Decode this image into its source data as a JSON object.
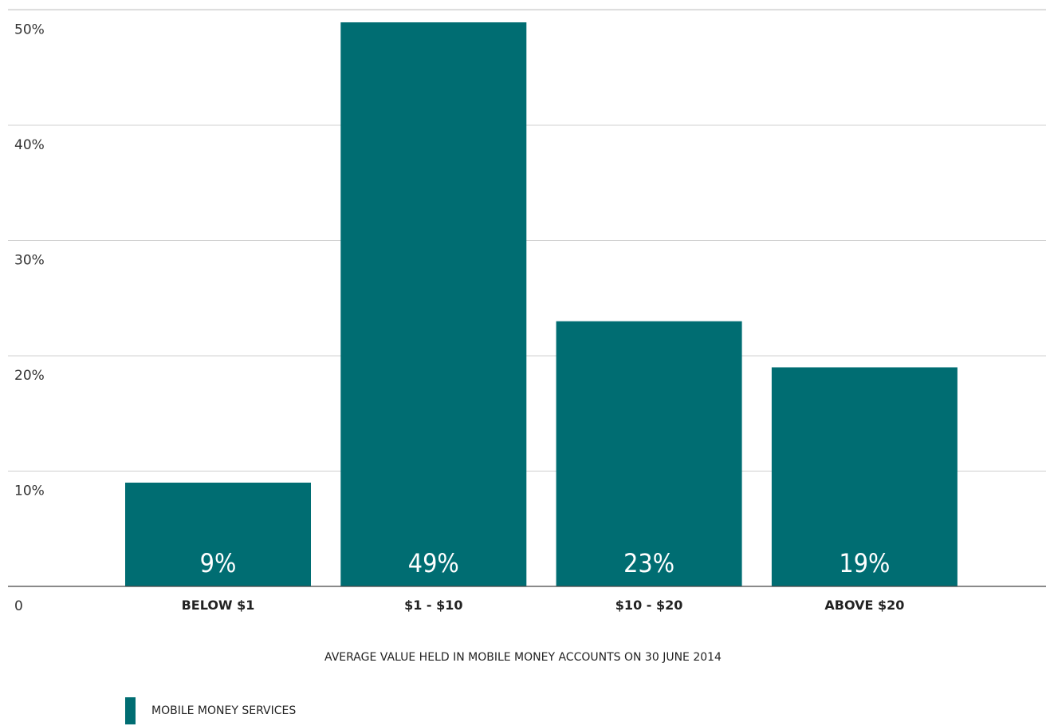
{
  "colors": {
    "bar": "#006d72",
    "grid": "#d0d0d0",
    "axis": "#444444"
  },
  "chart_data": {
    "type": "bar",
    "categories": [
      "BELOW $1",
      "$1 - $10",
      "$10 - $20",
      "ABOVE $20"
    ],
    "values": [
      9,
      49,
      23,
      19
    ],
    "data_labels": [
      "9%",
      "49%",
      "23%",
      "19%"
    ],
    "xlabel": "AVERAGE VALUE HELD IN MOBILE MONEY ACCOUNTS ON 30 JUNE 2014",
    "ylabel": "",
    "ylim": [
      0,
      50
    ],
    "yticks": [
      0,
      10,
      20,
      30,
      40,
      50
    ],
    "ytick_labels": [
      "0",
      "10%",
      "20%",
      "30%",
      "40%",
      "50%"
    ],
    "grid": true,
    "legend": {
      "position": "bottom-left",
      "entries": [
        "MOBILE MONEY SERVICES"
      ]
    }
  }
}
